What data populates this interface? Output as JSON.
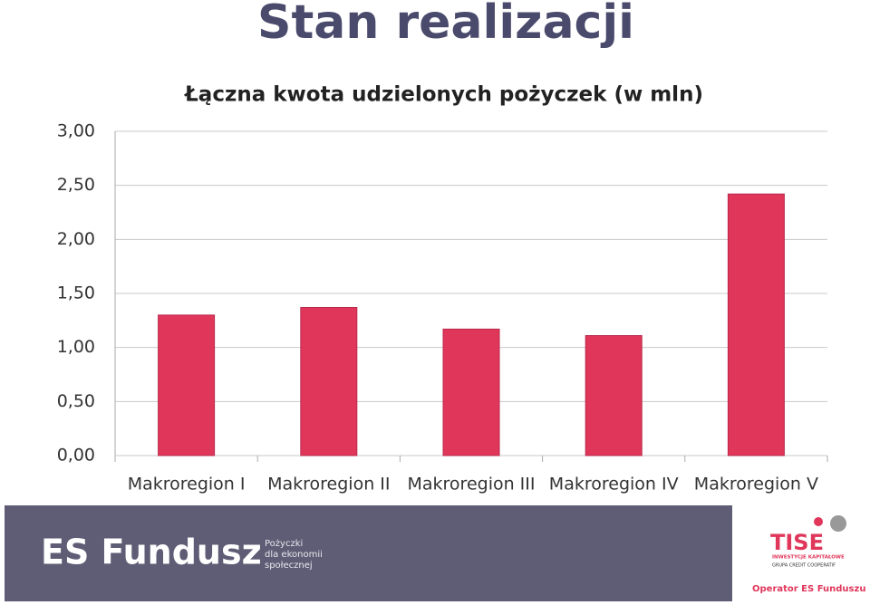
{
  "header": {
    "title": "Stan realizacji"
  },
  "chart_data": {
    "type": "bar",
    "title": "Łączna kwota udzielonych pożyczek (w mln)",
    "categories": [
      "Makroregion I",
      "Makroregion II",
      "Makroregion III",
      "Makroregion IV",
      "Makroregion V"
    ],
    "values": [
      1.3,
      1.37,
      1.17,
      1.11,
      2.42
    ],
    "color": "#e0365a",
    "ylim": [
      0,
      3
    ],
    "yticks": [
      {
        "value": 0,
        "label": "0,00"
      },
      {
        "value": 0.5,
        "label": "0,50"
      },
      {
        "value": 1,
        "label": "1,00"
      },
      {
        "value": 1.5,
        "label": "1,50"
      },
      {
        "value": 2,
        "label": "2,00"
      },
      {
        "value": 2.5,
        "label": "2,50"
      },
      {
        "value": 3,
        "label": "3,00"
      }
    ],
    "grid": true
  },
  "footer": {
    "brand": "ES Fundusz",
    "tagline": [
      "Pożyczki",
      "dla ekonomii",
      "społecznej"
    ],
    "partner": "TISE",
    "partner_sub1": "INWESTYCJE KAPITAŁOWE",
    "partner_sub2": "GRUPA CREDIT COOPERATIF",
    "operator": "Operator ES Funduszu"
  }
}
